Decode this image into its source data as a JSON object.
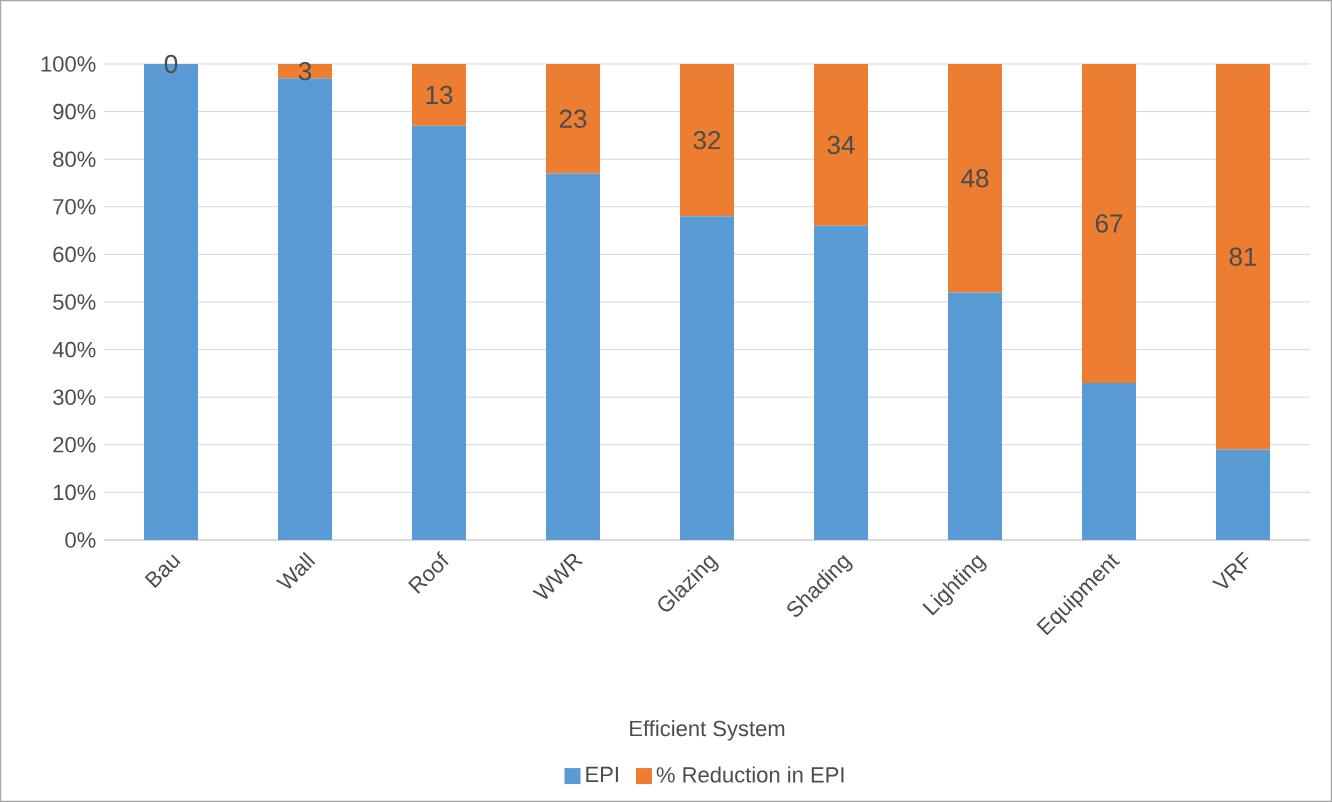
{
  "chart_data": {
    "type": "bar",
    "stacked": true,
    "xlabel": "Efficient System",
    "categories": [
      "Bau",
      "Wall",
      "Roof",
      "WWR",
      "Glazing",
      "Shading",
      "Lighting",
      "Equipment",
      "VRF"
    ],
    "series": [
      {
        "name": "EPI",
        "color": "#5b9bd5",
        "values": [
          100,
          97,
          87,
          77,
          68,
          66,
          52,
          33,
          19
        ]
      },
      {
        "name": "% Reduction in EPI",
        "color": "#ed7d31",
        "values": [
          0,
          3,
          13,
          23,
          32,
          34,
          48,
          67,
          81
        ],
        "value_labels": [
          "0",
          "3",
          "13",
          "23",
          "32",
          "34",
          "48",
          "67",
          "81"
        ]
      }
    ],
    "ylim": [
      0,
      100
    ],
    "yticks": [
      {
        "value": 0,
        "label": "0%"
      },
      {
        "value": 10,
        "label": "10%"
      },
      {
        "value": 20,
        "label": "20%"
      },
      {
        "value": 30,
        "label": "30%"
      },
      {
        "value": 40,
        "label": "40%"
      },
      {
        "value": 50,
        "label": "50%"
      },
      {
        "value": 60,
        "label": "60%"
      },
      {
        "value": 70,
        "label": "70%"
      },
      {
        "value": 80,
        "label": "80%"
      },
      {
        "value": 90,
        "label": "90%"
      },
      {
        "value": 100,
        "label": "100%"
      }
    ],
    "grid": "y",
    "legend": "bottom"
  }
}
